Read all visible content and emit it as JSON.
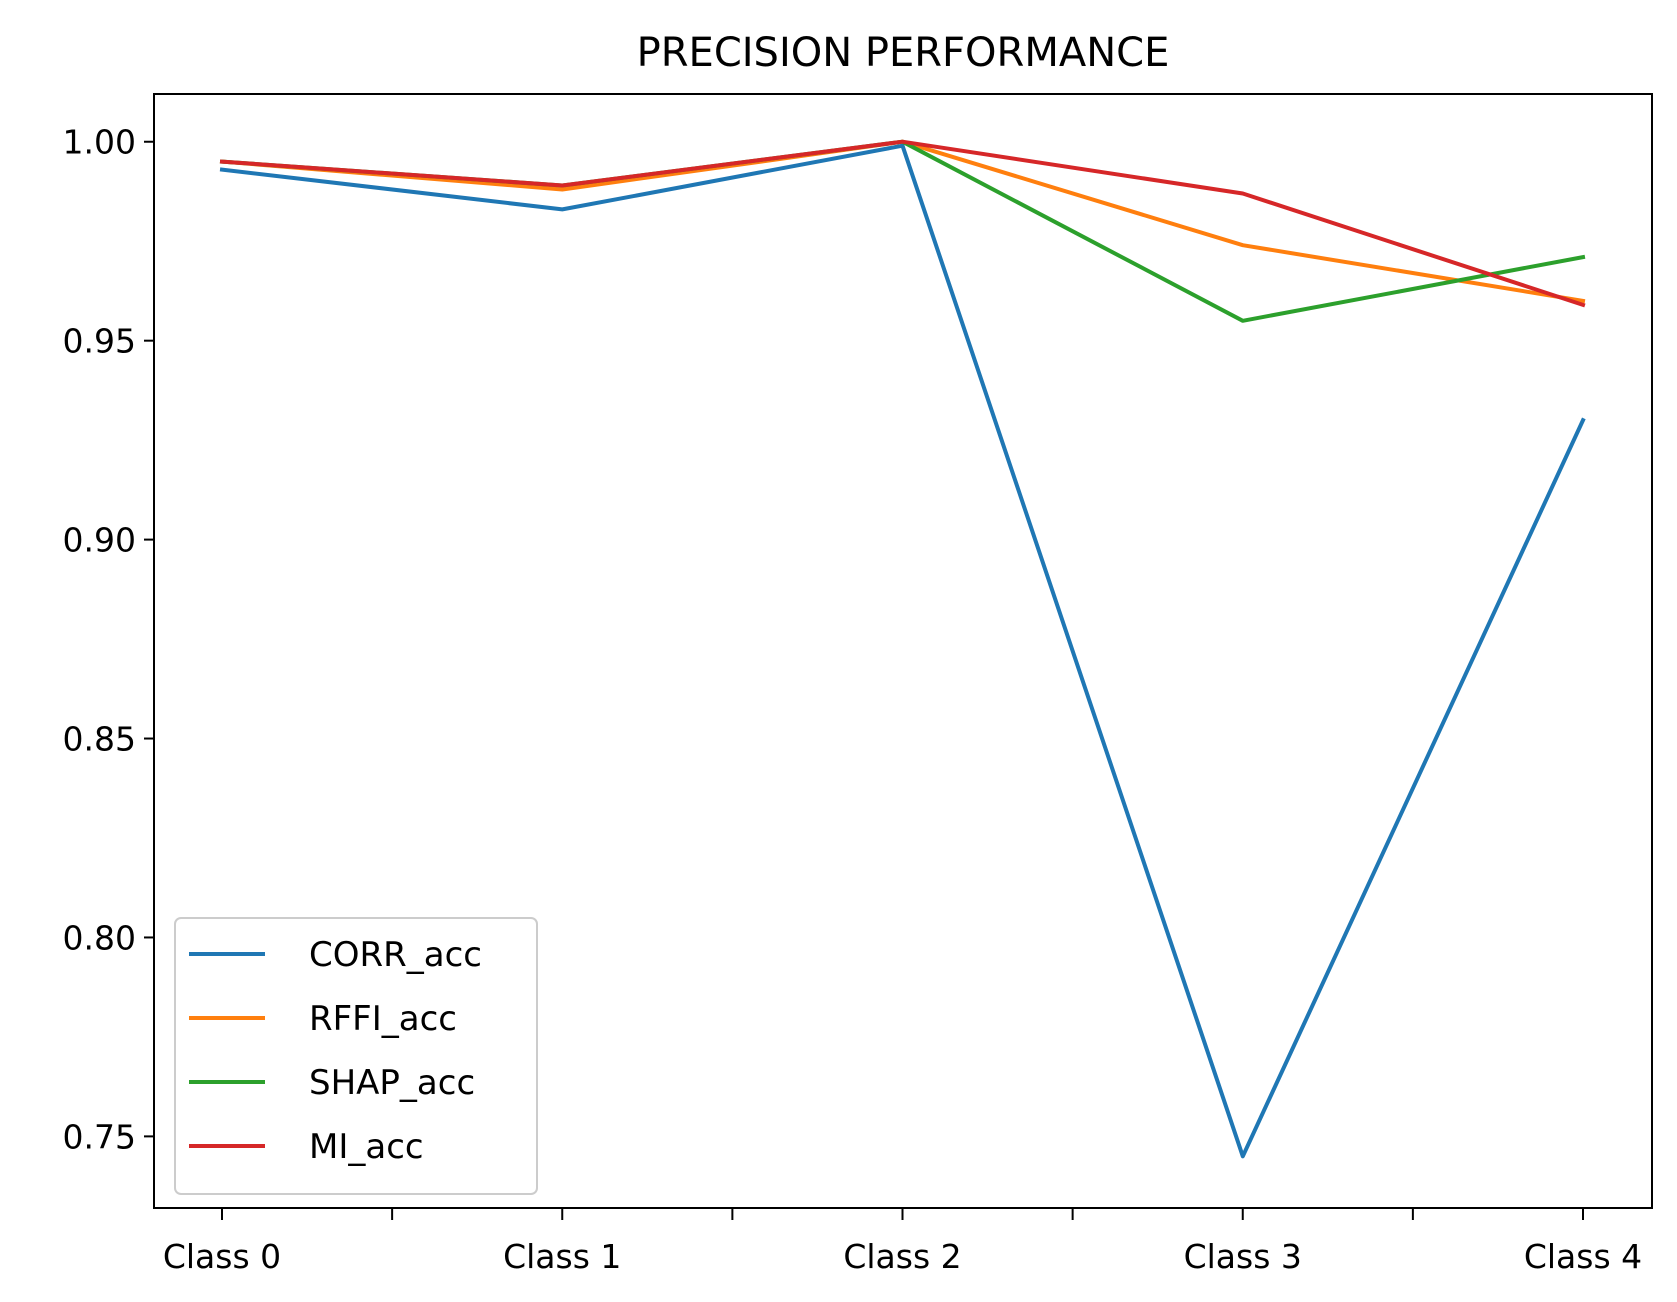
{
  "chart_data": {
    "type": "line",
    "title": "PRECISION PERFORMANCE",
    "xlabel": "",
    "ylabel": "",
    "categories": [
      "Class 0",
      "Class 1",
      "Class 2",
      "Class 3",
      "Class 4"
    ],
    "ylim": [
      0.732,
      1.012
    ],
    "yticks": [
      0.75,
      0.8,
      0.85,
      0.9,
      0.95,
      1.0
    ],
    "ytick_labels": [
      "0.75",
      "0.80",
      "0.85",
      "0.90",
      "0.95",
      "1.00"
    ],
    "grid": false,
    "legend_position": "lower-left",
    "series": [
      {
        "name": "CORR_acc",
        "color": "#1f77b4",
        "values": [
          0.993,
          0.983,
          0.999,
          0.745,
          0.93
        ]
      },
      {
        "name": "RFFI_acc",
        "color": "#ff7f0e",
        "values": [
          0.995,
          0.988,
          1.0,
          0.974,
          0.96
        ]
      },
      {
        "name": "SHAP_acc",
        "color": "#2ca02c",
        "values": [
          0.995,
          0.989,
          1.0,
          0.955,
          0.971
        ]
      },
      {
        "name": "MI_acc",
        "color": "#d62728",
        "values": [
          0.995,
          0.989,
          1.0,
          0.987,
          0.959
        ]
      }
    ]
  }
}
